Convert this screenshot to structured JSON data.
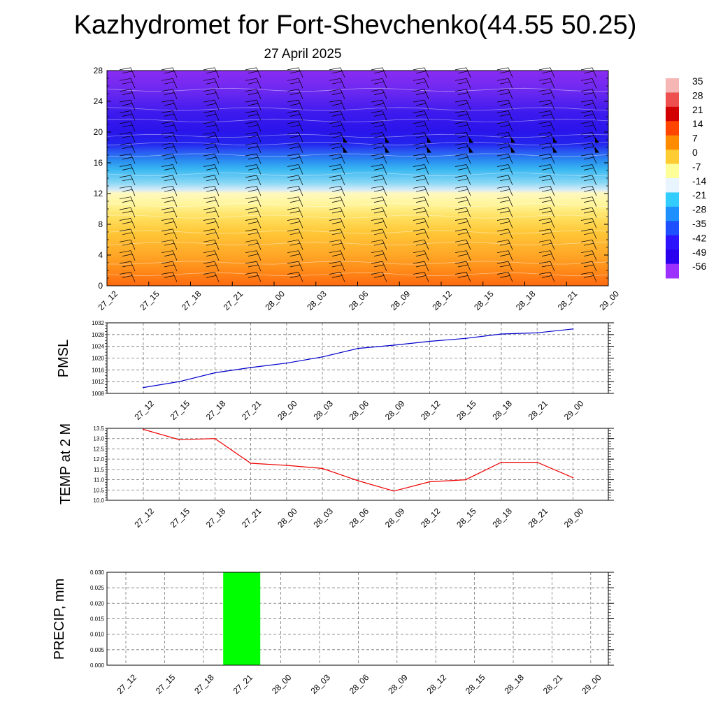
{
  "title": "Kazhydromet for Fort-Shevchenko(44.55 50.25)",
  "subtitle": "27 April 2025",
  "time_labels": [
    "27_12",
    "27_15",
    "27_18",
    "27_21",
    "28_00",
    "28_03",
    "28_06",
    "28_09",
    "28_12",
    "28_15",
    "28_18",
    "28_21",
    "29_00"
  ],
  "colorbar": {
    "labels": [
      "35",
      "28",
      "21",
      "14",
      "7",
      "0",
      "-7",
      "-14",
      "-21",
      "-28",
      "-35",
      "-42",
      "-49",
      "-56"
    ],
    "colors": [
      "#f6b6b6",
      "#ee5050",
      "#d20000",
      "#ff4500",
      "#ff8c00",
      "#ffcc33",
      "#ffff99",
      "#e8f4ff",
      "#33ccff",
      "#1e90ff",
      "#1e50ff",
      "#2c14ff",
      "#2a00ee",
      "#9b30ff"
    ]
  },
  "chart_data": [
    {
      "type": "heatmap",
      "name": "upper-air temperature and wind",
      "x": [
        "27_12",
        "27_15",
        "27_18",
        "27_21",
        "28_00",
        "28_03",
        "28_06",
        "28_09",
        "28_12",
        "28_15",
        "28_18",
        "28_21",
        "29_00"
      ],
      "ylim": [
        0,
        28
      ],
      "yticks": [
        0,
        4,
        8,
        12,
        16,
        20,
        24,
        28
      ],
      "bands": [
        {
          "y_from": 0,
          "y_to": 4,
          "value": 10
        },
        {
          "y_from": 4,
          "y_to": 8,
          "value": 4
        },
        {
          "y_from": 8,
          "y_to": 12,
          "value": -3
        },
        {
          "y_from": 12,
          "y_to": 13,
          "value": -15
        },
        {
          "y_from": 13,
          "y_to": 16,
          "value": -28
        },
        {
          "y_from": 16,
          "y_to": 18,
          "value": -42
        },
        {
          "y_from": 18,
          "y_to": 20,
          "value": -52
        },
        {
          "y_from": 20,
          "y_to": 24,
          "value": -56
        },
        {
          "y_from": 24,
          "y_to": 28,
          "value": -54
        }
      ],
      "grid": false
    },
    {
      "type": "line",
      "ylabel": "PMSL",
      "x": [
        "27_12",
        "27_15",
        "27_18",
        "27_21",
        "28_00",
        "28_03",
        "28_06",
        "28_09",
        "28_12",
        "28_15",
        "28_18",
        "28_21",
        "29_00"
      ],
      "values": [
        1010,
        1012,
        1015,
        1016.8,
        1018.3,
        1020.4,
        1023.3,
        1024.4,
        1025.7,
        1026.7,
        1028.2,
        1028.6,
        1029.9
      ],
      "ylim": [
        1008,
        1032
      ],
      "yticks": [
        "1008",
        "1012",
        "1016",
        "1020",
        "1024",
        "1028",
        "1032"
      ],
      "color": "#0000cc",
      "grid": true
    },
    {
      "type": "line",
      "ylabel": "TEMP at 2 M",
      "x": [
        "27_12",
        "27_15",
        "27_18",
        "27_21",
        "28_00",
        "28_03",
        "28_06",
        "28_09",
        "28_12",
        "28_15",
        "28_18",
        "28_21",
        "29_00"
      ],
      "values": [
        13.45,
        12.95,
        13.0,
        11.8,
        11.7,
        11.55,
        10.95,
        10.45,
        10.9,
        11.0,
        11.85,
        11.85,
        11.1
      ],
      "ylim": [
        10.0,
        13.5
      ],
      "yticks": [
        "10.0",
        "10.5",
        "11.0",
        "11.5",
        "12.0",
        "12.5",
        "13.0",
        "13.5"
      ],
      "color": "#ee0000",
      "grid": true
    },
    {
      "type": "bar",
      "ylabel": "PRECIP, mm",
      "categories": [
        "27_12",
        "27_15",
        "27_18",
        "27_21",
        "28_00",
        "28_03",
        "28_06",
        "28_09",
        "28_12",
        "28_15",
        "28_18",
        "28_21",
        "29_00"
      ],
      "values": [
        0,
        0,
        0,
        0.03,
        0,
        0,
        0,
        0,
        0,
        0,
        0,
        0,
        0
      ],
      "ylim": [
        0,
        0.03
      ],
      "yticks": [
        "0.000",
        "0.005",
        "0.010",
        "0.015",
        "0.020",
        "0.025",
        "0.030"
      ],
      "color": "#00ff00",
      "grid": true
    }
  ]
}
